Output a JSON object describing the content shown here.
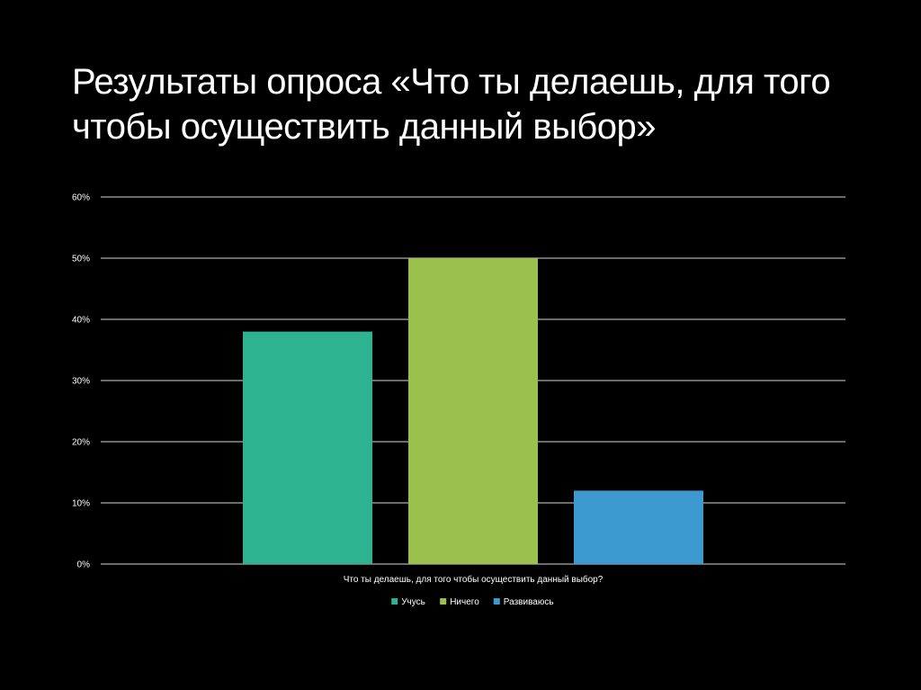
{
  "slide": {
    "title": "Результаты опроса «Что ты делаешь, для того чтобы осуществить данный выбор»"
  },
  "chart_data": {
    "type": "bar",
    "categories": [
      "Что ты делаешь, для того чтобы осуществить данный выбор?"
    ],
    "series": [
      {
        "name": "Учусь",
        "values": [
          0.38
        ],
        "color": "#2db38f"
      },
      {
        "name": "Ничего",
        "values": [
          0.5
        ],
        "color": "#9bc04e"
      },
      {
        "name": "Развиваюсь",
        "values": [
          0.12
        ],
        "color": "#3d9ad1"
      }
    ],
    "ylim": [
      0,
      0.6
    ],
    "yticks": [
      {
        "value": 0.0,
        "label": "0%"
      },
      {
        "value": 0.1,
        "label": "10%"
      },
      {
        "value": 0.2,
        "label": "20%"
      },
      {
        "value": 0.3,
        "label": "30%"
      },
      {
        "value": 0.4,
        "label": "40%"
      },
      {
        "value": 0.5,
        "label": "50%"
      },
      {
        "value": 0.6,
        "label": "60%"
      }
    ],
    "grid": true,
    "legend_position": "bottom",
    "gridline_color": "#d9d9d9",
    "text_color": "#ffffff"
  }
}
